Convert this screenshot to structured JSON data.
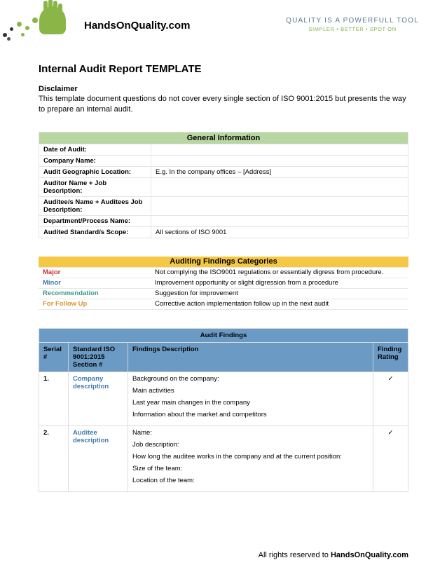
{
  "header": {
    "site_name": "HandsOnQuality.com",
    "tagline_main": "QUALITY IS A POWERFULL TOOL",
    "tagline_sub": "SIMPLER • BETTER • SPOT ON"
  },
  "title": "Internal Audit Report TEMPLATE",
  "disclaimer": {
    "heading": "Disclaimer",
    "text": "This template document questions do not cover every single section of ISO 9001:2015 but presents the way to prepare an internal audit."
  },
  "general_info": {
    "header": "General Information",
    "header_bg": "#b7d6a2",
    "rows": [
      {
        "label": "Date of Audit:",
        "value": ""
      },
      {
        "label": "Company Name:",
        "value": ""
      },
      {
        "label": "Audit Geographic Location:",
        "value": "E.g. In the company offices – [Address]"
      },
      {
        "label": "Auditor Name + Job Description:",
        "value": ""
      },
      {
        "label": "Auditee/s Name + Auditees Job Description:",
        "value": ""
      },
      {
        "label": "Department/Process Name:",
        "value": ""
      },
      {
        "label": "Audited Standard/s Scope:",
        "value": "All sections of ISO 9001"
      }
    ]
  },
  "categories": {
    "header": "Auditing Findings Categories",
    "header_bg": "#f5c843",
    "rows": [
      {
        "label": "Major",
        "color": "#cc3030",
        "desc": "Not complying the ISO9001 regulations or essentially digress from procedure."
      },
      {
        "label": "Minor",
        "color": "#3f7aad",
        "desc": "Improvement opportunity or slight digression from a procedure"
      },
      {
        "label": "Recommendation",
        "color": "#3a9a8a",
        "desc": "Suggestion for improvement"
      },
      {
        "label": "For Follow Up",
        "color": "#d89530",
        "desc": "Corrective action implementation follow up in the next audit"
      }
    ]
  },
  "findings": {
    "header": "Audit Findings",
    "header_bg": "#6b9bc4",
    "columns": [
      "Serial #",
      "Standard ISO 9001:2015 Section #",
      "Findings Description",
      "Finding Rating"
    ],
    "rows": [
      {
        "serial": "1.",
        "section": "Company description",
        "section_color": "#3f7aad",
        "desc": [
          "Background on the company:",
          "Main activities",
          "Last year main changes in the company",
          "Information about the market and competitors"
        ],
        "rating": "✓"
      },
      {
        "serial": "2.",
        "section": "Auditee description",
        "section_color": "#3f7aad",
        "desc": [
          "Name:",
          "Job description:",
          "How long the auditee works in the company and at the current position:",
          "Size of the team:",
          "Location of the team:"
        ],
        "rating": "✓"
      }
    ]
  },
  "footer": {
    "prefix": "All rights reserved to ",
    "bold": "HandsOnQuality.com"
  },
  "colors": {
    "text": "#000000",
    "border": "#e4e4e4"
  }
}
